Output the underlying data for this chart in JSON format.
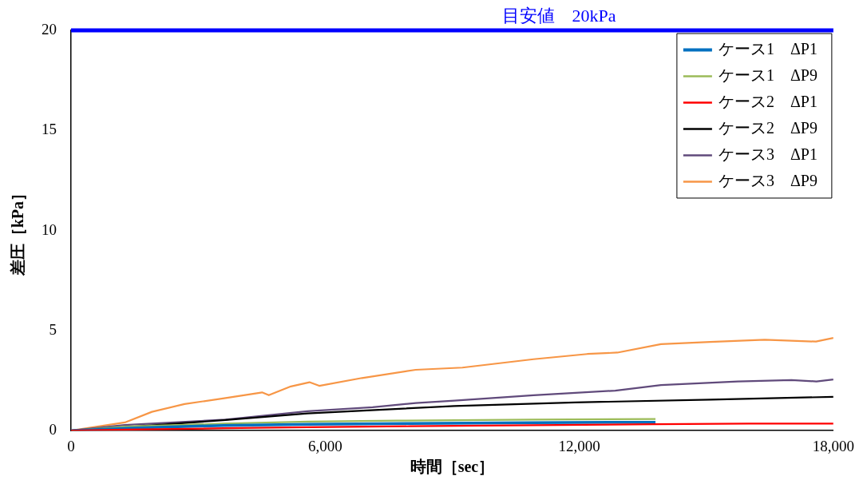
{
  "chart_data": {
    "type": "line",
    "xlabel": "時間［sec］",
    "ylabel": "差圧［kPa］",
    "xlim": [
      0,
      18000
    ],
    "ylim": [
      0,
      20
    ],
    "xticks": [
      0,
      {
        "value": 6000,
        "label": "6,000"
      },
      {
        "value": 12000,
        "label": "12,000"
      },
      {
        "value": 18000,
        "label": "18,000"
      }
    ],
    "yticks": [
      0,
      5,
      10,
      15,
      20
    ],
    "grid": false,
    "legend": "top right",
    "marker": "none",
    "line_style": "solid",
    "ref_lines": [
      {
        "axis": "y",
        "value": 20,
        "label": "目安値　20kPa",
        "color": "#0000ff"
      }
    ],
    "series": [
      {
        "name": "ケース1　ΔP1",
        "color": "#0070c0",
        "x": [
          0,
          1300,
          3600,
          5600,
          8000,
          10900,
          13800
        ],
        "values": [
          0,
          0.12,
          0.26,
          0.32,
          0.36,
          0.4,
          0.42
        ]
      },
      {
        "name": "ケース1　ΔP9",
        "color": "#9bbb59",
        "x": [
          0,
          1300,
          3600,
          5600,
          7700,
          10900,
          13800
        ],
        "values": [
          0,
          0.2,
          0.35,
          0.45,
          0.5,
          0.55,
          0.58
        ]
      },
      {
        "name": "ケース2　ΔP1",
        "color": "#ff0000",
        "x": [
          0,
          1300,
          3600,
          5600,
          8000,
          10900,
          13800,
          16000,
          18000
        ],
        "values": [
          0,
          0.05,
          0.12,
          0.17,
          0.22,
          0.27,
          0.32,
          0.35,
          0.35
        ]
      },
      {
        "name": "ケース2　ΔP9",
        "color": "#000000",
        "x": [
          0,
          1300,
          3650,
          5580,
          9050,
          11900,
          15100,
          18000
        ],
        "values": [
          0,
          0.17,
          0.53,
          0.86,
          1.23,
          1.41,
          1.55,
          1.69
        ]
      },
      {
        "name": "ケース3　ΔP1",
        "color": "#604a7b",
        "x": [
          0,
          1270,
          3650,
          5580,
          7120,
          8140,
          9050,
          10920,
          12850,
          13930,
          15740,
          17010,
          17600,
          18000
        ],
        "values": [
          0,
          0.28,
          0.55,
          0.97,
          1.17,
          1.38,
          1.5,
          1.77,
          2.0,
          2.28,
          2.46,
          2.53,
          2.46,
          2.56
        ]
      },
      {
        "name": "ケース3　ΔP9",
        "color": "#f79646",
        "x": [
          0,
          1270,
          1910,
          2680,
          3650,
          4510,
          4670,
          5190,
          5630,
          5860,
          6870,
          8140,
          9240,
          10920,
          12190,
          12900,
          13930,
          15090,
          16380,
          17590,
          18000
        ],
        "values": [
          0,
          0.41,
          0.94,
          1.33,
          1.63,
          1.91,
          1.77,
          2.21,
          2.42,
          2.24,
          2.63,
          3.04,
          3.15,
          3.57,
          3.83,
          3.9,
          4.32,
          4.43,
          4.54,
          4.45,
          4.63
        ]
      }
    ]
  }
}
